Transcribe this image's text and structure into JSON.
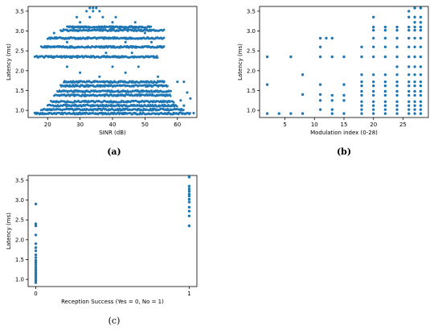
{
  "marker_color": "#1f77b4",
  "chart_data": [
    {
      "panel": "a",
      "caption": "(a)",
      "type": "scatter",
      "title": "",
      "xlabel": "SINR (dB)",
      "ylabel": "Latency (ms)",
      "xlim": [
        14,
        66
      ],
      "ylim": [
        0.82,
        3.62
      ],
      "xticks": [
        20,
        30,
        40,
        50,
        60
      ],
      "yticks": [
        1.0,
        1.5,
        2.0,
        2.5,
        3.0,
        3.5
      ],
      "grid": false,
      "series": [
        {
          "bands": [
            {
              "y": 0.92,
              "xmin": 16,
              "xmax": 64
            },
            {
              "y": 1.02,
              "xmin": 18,
              "xmax": 62
            },
            {
              "y": 1.12,
              "xmin": 20,
              "xmax": 60
            },
            {
              "y": 1.22,
              "xmin": 21,
              "xmax": 59
            },
            {
              "y": 1.38,
              "xmin": 22,
              "xmax": 58
            },
            {
              "y": 1.48,
              "xmin": 23,
              "xmax": 58
            },
            {
              "y": 1.62,
              "xmin": 24,
              "xmax": 57
            },
            {
              "y": 1.72,
              "xmin": 25,
              "xmax": 56
            },
            {
              "y": 2.35,
              "xmin": 16,
              "xmax": 54
            },
            {
              "y": 2.6,
              "xmin": 18,
              "xmax": 56
            },
            {
              "y": 2.82,
              "xmin": 20,
              "xmax": 56
            },
            {
              "y": 3.02,
              "xmin": 24,
              "xmax": 56
            },
            {
              "y": 3.1,
              "xmin": 26,
              "xmax": 52
            }
          ],
          "points": [
            [
              33,
              3.58
            ],
            [
              34,
              3.58
            ],
            [
              35,
              3.58
            ],
            [
              32,
              3.5
            ],
            [
              34,
              3.5
            ],
            [
              36,
              3.5
            ],
            [
              29,
              3.35
            ],
            [
              33,
              3.35
            ],
            [
              37,
              3.35
            ],
            [
              41,
              3.35
            ],
            [
              30,
              3.22
            ],
            [
              40,
              3.22
            ],
            [
              47,
              3.22
            ],
            [
              22,
              2.95
            ],
            [
              50,
              2.95
            ],
            [
              26,
              2.72
            ],
            [
              44,
              2.72
            ],
            [
              52,
              2.72
            ],
            [
              38,
              2.45
            ],
            [
              46,
              2.45
            ],
            [
              26,
              2.1
            ],
            [
              40,
              2.1
            ],
            [
              48,
              2.1
            ],
            [
              30,
              1.95
            ],
            [
              44,
              1.95
            ],
            [
              36,
              1.85
            ],
            [
              54,
              1.85
            ],
            [
              60,
              1.72
            ],
            [
              62,
              1.72
            ],
            [
              63,
              1.45
            ],
            [
              64,
              1.3
            ],
            [
              61,
              1.25
            ],
            [
              62,
              1.12
            ],
            [
              65,
              0.93
            ]
          ]
        }
      ]
    },
    {
      "panel": "b",
      "caption": "(b)",
      "type": "scatter",
      "title": "",
      "xlabel": "Modulation index (0-28)",
      "ylabel": "Latency (ms)",
      "xlim": [
        0.7,
        29.3
      ],
      "ylim": [
        0.82,
        3.62
      ],
      "xticks": [
        5,
        10,
        15,
        20,
        25
      ],
      "yticks": [
        1.0,
        1.5,
        2.0,
        2.5,
        3.0,
        3.5
      ],
      "grid": false,
      "series": [
        {
          "points": [
            [
              2,
              0.92
            ],
            [
              2,
              1.65
            ],
            [
              2,
              2.35
            ],
            [
              4,
              0.92
            ],
            [
              6,
              0.92
            ],
            [
              6,
              2.35
            ],
            [
              8,
              0.92
            ],
            [
              8,
              1.4
            ],
            [
              8,
              1.9
            ],
            [
              11,
              1.02
            ],
            [
              11,
              1.25
            ],
            [
              11,
              1.4
            ],
            [
              11,
              1.65
            ],
            [
              11,
              2.35
            ],
            [
              11,
              2.6
            ],
            [
              11,
              2.82
            ],
            [
              12,
              2.82
            ],
            [
              13,
              0.92
            ],
            [
              13,
              1.02
            ],
            [
              13,
              1.25
            ],
            [
              13,
              1.38
            ],
            [
              13,
              2.35
            ],
            [
              13,
              2.82
            ],
            [
              15,
              0.92
            ],
            [
              15,
              1.25
            ],
            [
              15,
              1.38
            ],
            [
              15,
              1.65
            ],
            [
              15,
              2.35
            ],
            [
              18,
              0.92
            ],
            [
              18,
              1.02
            ],
            [
              18,
              1.12
            ],
            [
              18,
              1.22
            ],
            [
              18,
              1.38
            ],
            [
              18,
              1.48
            ],
            [
              18,
              1.62
            ],
            [
              18,
              1.72
            ],
            [
              18,
              1.9
            ],
            [
              18,
              2.35
            ],
            [
              18,
              2.6
            ],
            [
              20,
              0.92
            ],
            [
              20,
              1.02
            ],
            [
              20,
              1.12
            ],
            [
              20,
              1.22
            ],
            [
              20,
              1.38
            ],
            [
              20,
              1.48
            ],
            [
              20,
              1.62
            ],
            [
              20,
              1.72
            ],
            [
              20,
              1.9
            ],
            [
              20,
              2.35
            ],
            [
              20,
              2.6
            ],
            [
              20,
              2.82
            ],
            [
              20,
              3.02
            ],
            [
              20,
              3.1
            ],
            [
              20,
              3.35
            ],
            [
              22,
              0.92
            ],
            [
              22,
              1.02
            ],
            [
              22,
              1.12
            ],
            [
              22,
              1.22
            ],
            [
              22,
              1.38
            ],
            [
              22,
              1.48
            ],
            [
              22,
              1.62
            ],
            [
              22,
              1.72
            ],
            [
              22,
              1.9
            ],
            [
              22,
              2.35
            ],
            [
              22,
              2.6
            ],
            [
              22,
              2.82
            ],
            [
              22,
              3.02
            ],
            [
              22,
              3.1
            ],
            [
              24,
              0.92
            ],
            [
              24,
              1.02
            ],
            [
              24,
              1.12
            ],
            [
              24,
              1.22
            ],
            [
              24,
              1.38
            ],
            [
              24,
              1.48
            ],
            [
              24,
              1.62
            ],
            [
              24,
              1.72
            ],
            [
              24,
              1.9
            ],
            [
              24,
              2.1
            ],
            [
              24,
              2.35
            ],
            [
              24,
              2.6
            ],
            [
              24,
              2.82
            ],
            [
              24,
              3.02
            ],
            [
              24,
              3.1
            ],
            [
              26,
              0.92
            ],
            [
              26,
              1.02
            ],
            [
              26,
              1.12
            ],
            [
              26,
              1.22
            ],
            [
              26,
              1.38
            ],
            [
              26,
              1.48
            ],
            [
              26,
              1.62
            ],
            [
              26,
              1.72
            ],
            [
              26,
              1.9
            ],
            [
              26,
              2.1
            ],
            [
              26,
              2.35
            ],
            [
              26,
              2.6
            ],
            [
              26,
              2.82
            ],
            [
              26,
              3.02
            ],
            [
              26,
              3.1
            ],
            [
              26,
              3.35
            ],
            [
              26,
              3.5
            ],
            [
              27,
              0.92
            ],
            [
              27,
              1.02
            ],
            [
              27,
              1.12
            ],
            [
              27,
              1.22
            ],
            [
              27,
              1.38
            ],
            [
              27,
              1.48
            ],
            [
              27,
              1.62
            ],
            [
              27,
              1.72
            ],
            [
              27,
              1.9
            ],
            [
              27,
              2.1
            ],
            [
              27,
              2.35
            ],
            [
              27,
              2.6
            ],
            [
              27,
              2.82
            ],
            [
              27,
              3.02
            ],
            [
              27,
              3.1
            ],
            [
              27,
              3.22
            ],
            [
              27,
              3.35
            ],
            [
              27,
              3.58
            ],
            [
              28,
              0.92
            ],
            [
              28,
              1.02
            ],
            [
              28,
              1.12
            ],
            [
              28,
              1.22
            ],
            [
              28,
              1.38
            ],
            [
              28,
              1.48
            ],
            [
              28,
              1.62
            ],
            [
              28,
              1.72
            ],
            [
              28,
              1.9
            ],
            [
              28,
              2.1
            ],
            [
              28,
              2.35
            ],
            [
              28,
              2.6
            ],
            [
              28,
              2.82
            ],
            [
              28,
              3.02
            ],
            [
              28,
              3.1
            ],
            [
              28,
              3.22
            ],
            [
              28,
              3.35
            ],
            [
              28,
              3.58
            ]
          ]
        }
      ]
    },
    {
      "panel": "c",
      "caption": "(c)",
      "type": "scatter",
      "title": "",
      "xlabel": "Reception Success (Yes = 0, No = 1)",
      "ylabel": "Latency (ms)",
      "xlim": [
        -0.05,
        1.05
      ],
      "ylim": [
        0.82,
        3.62
      ],
      "xticks": [
        0,
        1
      ],
      "yticks": [
        1.0,
        1.5,
        2.0,
        2.5,
        3.0,
        3.5
      ],
      "grid": false,
      "series": [
        {
          "points": [
            [
              0,
              0.92
            ],
            [
              0,
              0.97
            ],
            [
              0,
              1.02
            ],
            [
              0,
              1.07
            ],
            [
              0,
              1.12
            ],
            [
              0,
              1.17
            ],
            [
              0,
              1.22
            ],
            [
              0,
              1.27
            ],
            [
              0,
              1.32
            ],
            [
              0,
              1.38
            ],
            [
              0,
              1.43
            ],
            [
              0,
              1.48
            ],
            [
              0,
              1.55
            ],
            [
              0,
              1.62
            ],
            [
              0,
              1.72
            ],
            [
              0,
              1.8
            ],
            [
              0,
              1.9
            ],
            [
              0,
              2.12
            ],
            [
              0,
              2.35
            ],
            [
              0,
              2.4
            ],
            [
              0,
              2.9
            ],
            [
              1,
              2.35
            ],
            [
              1,
              2.6
            ],
            [
              1,
              2.72
            ],
            [
              1,
              2.82
            ],
            [
              1,
              2.95
            ],
            [
              1,
              3.02
            ],
            [
              1,
              3.1
            ],
            [
              1,
              3.15
            ],
            [
              1,
              3.22
            ],
            [
              1,
              3.28
            ],
            [
              1,
              3.35
            ],
            [
              1,
              3.58
            ]
          ]
        }
      ]
    }
  ]
}
